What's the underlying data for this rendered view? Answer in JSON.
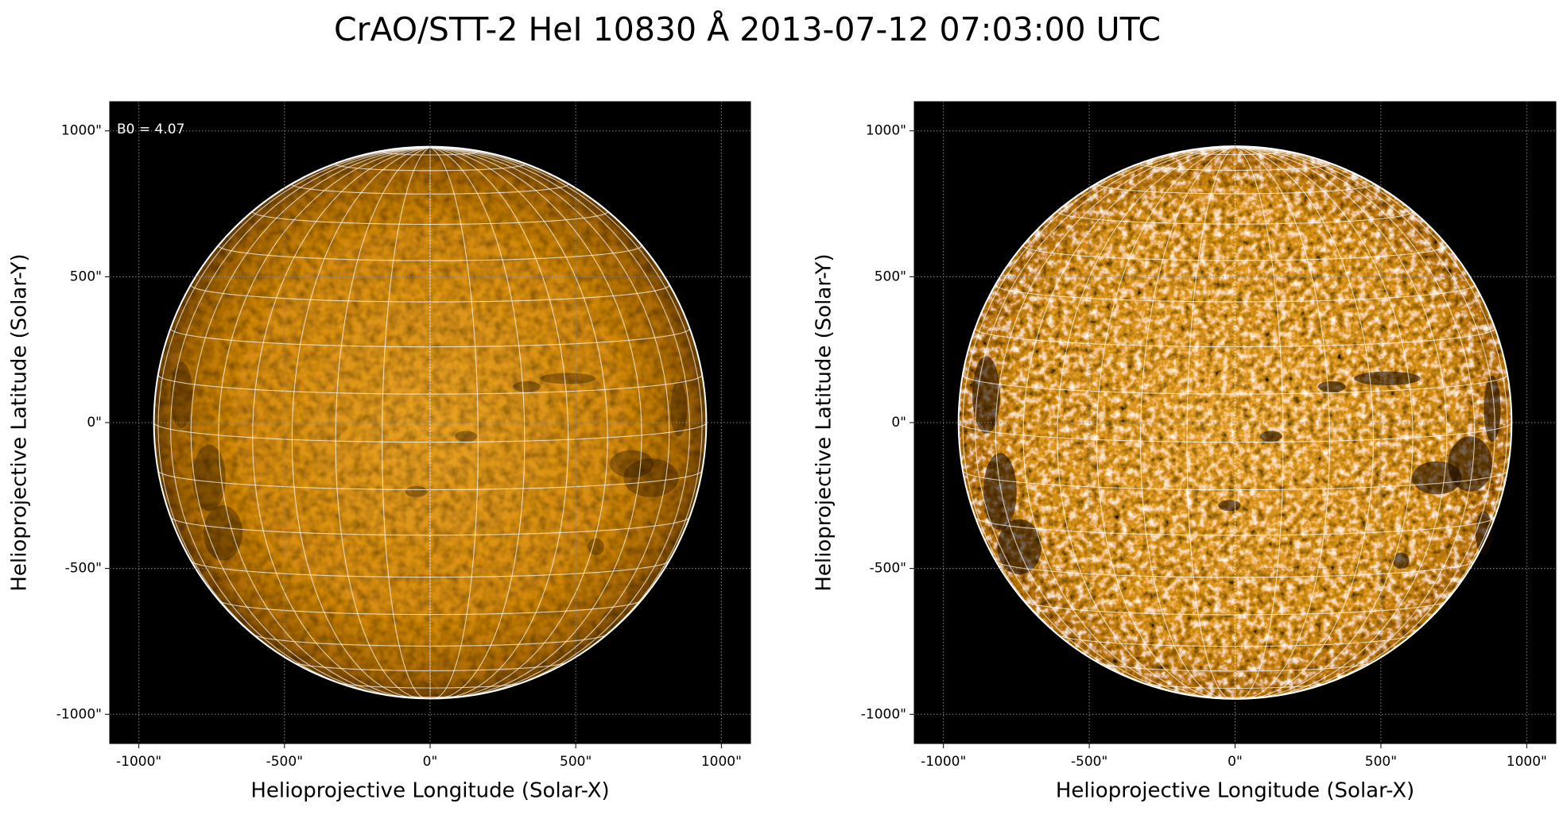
{
  "title": "CrAO/STT-2 HeI 10830 Å 2013-07-12 07:03:00 UTC",
  "chart_data": [
    {
      "type": "image",
      "xlabel": "Helioprojective Longitude (Solar-X)",
      "ylabel": "Helioprojective Latitude (Solar-Y)",
      "annotation": "B0 = 4.07",
      "xlim": [
        -1100,
        1100
      ],
      "ylim": [
        -1100,
        1100
      ],
      "xticks": [
        {
          "value": -1000,
          "label": "-1000\""
        },
        {
          "value": -500,
          "label": "-500\""
        },
        {
          "value": 0,
          "label": "0\""
        },
        {
          "value": 500,
          "label": "500\""
        },
        {
          "value": 1000,
          "label": "1000\""
        }
      ],
      "yticks": [
        {
          "value": -1000,
          "label": "-1000\""
        },
        {
          "value": -500,
          "label": "-500\""
        },
        {
          "value": 0,
          "label": "0\""
        },
        {
          "value": 500,
          "label": "500\""
        },
        {
          "value": 1000,
          "label": "1000\""
        }
      ],
      "grid": true
    },
    {
      "type": "image",
      "xlabel": "Helioprojective Longitude (Solar-X)",
      "ylabel": "Helioprojective Latitude (Solar-Y)",
      "xlim": [
        -1100,
        1100
      ],
      "ylim": [
        -1100,
        1100
      ],
      "xticks": [
        {
          "value": -1000,
          "label": "-1000\""
        },
        {
          "value": -500,
          "label": "-500\""
        },
        {
          "value": 0,
          "label": "0\""
        },
        {
          "value": 500,
          "label": "500\""
        },
        {
          "value": 1000,
          "label": "1000\""
        }
      ],
      "yticks": [
        {
          "value": -1000,
          "label": "-1000\""
        },
        {
          "value": -500,
          "label": "-500\""
        },
        {
          "value": 0,
          "label": "0\""
        },
        {
          "value": 500,
          "label": "500\""
        },
        {
          "value": 1000,
          "label": "1000\""
        }
      ],
      "grid": true
    }
  ]
}
